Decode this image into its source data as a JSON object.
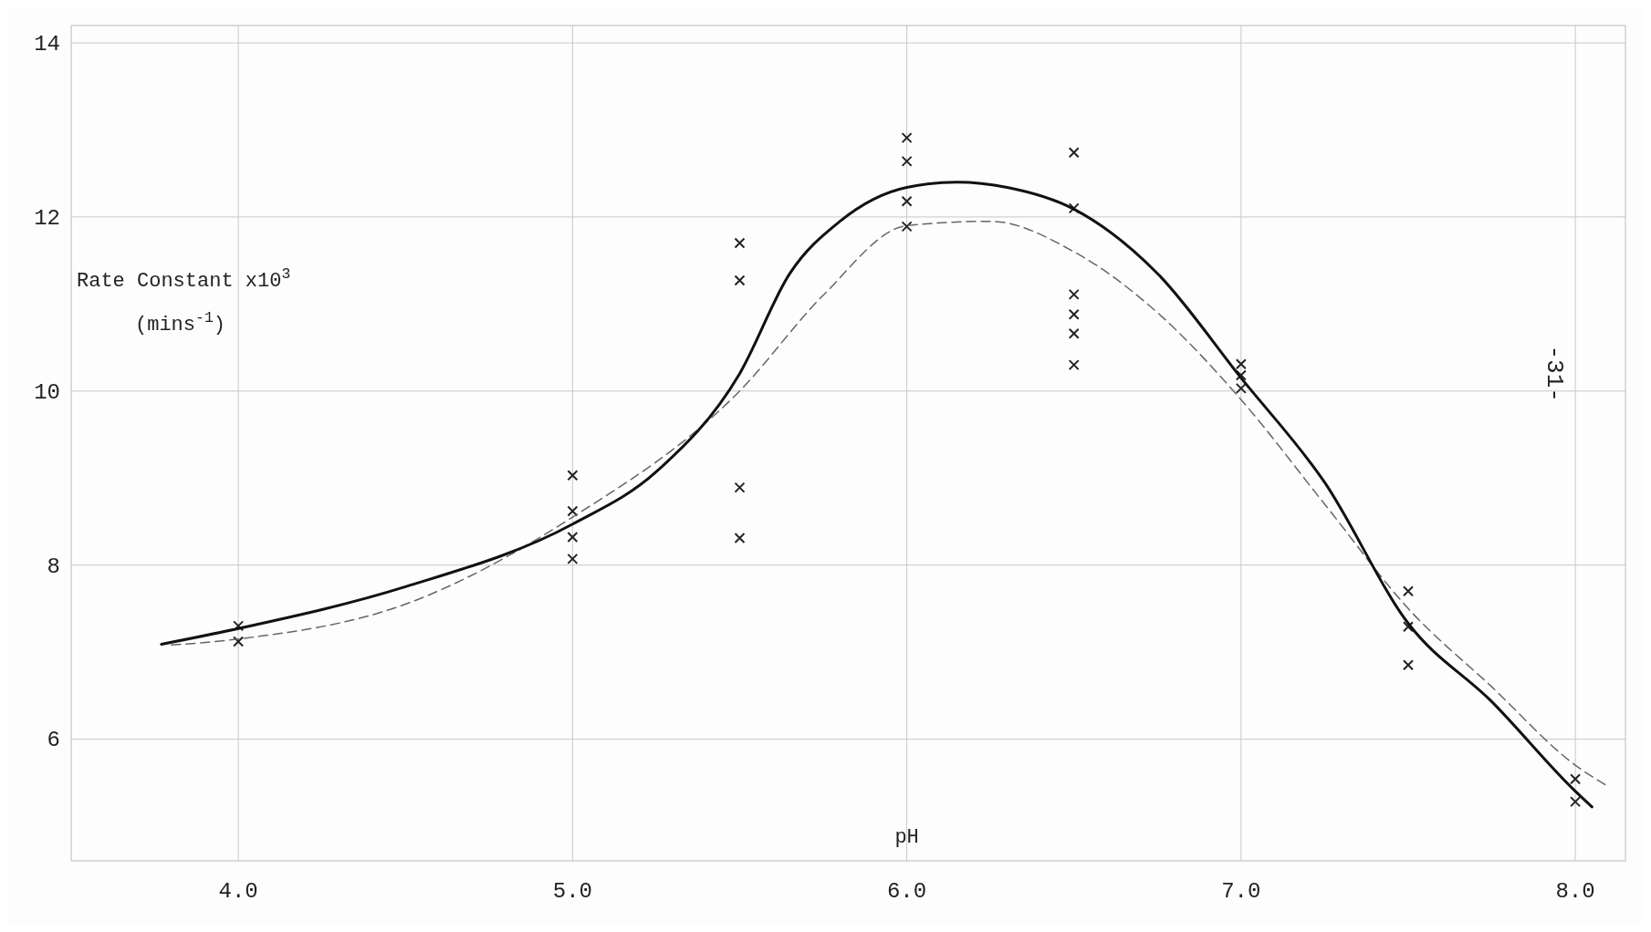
{
  "chart_data": {
    "type": "line",
    "xlabel": "pH",
    "ylabel": "Rate Constant x10$^{3}$ (mins$^{-1}$)",
    "annotations": [
      "-31-"
    ],
    "xlim": [
      3.5,
      8.15
    ],
    "ylim": [
      4.6,
      14.2
    ],
    "xticks": [
      {
        "value": 4,
        "label": "4.0"
      },
      {
        "value": 5,
        "label": "5.0"
      },
      {
        "value": 6,
        "label": "6.0"
      },
      {
        "value": 7,
        "label": "7.0"
      },
      {
        "value": 8,
        "label": "8.0"
      }
    ],
    "yticks": [
      6,
      8,
      10,
      12,
      14
    ],
    "grid": true,
    "series": [
      {
        "type": "scatter",
        "marker": "cross",
        "color": "#222222",
        "x": [
          4,
          4,
          5,
          5,
          5,
          5,
          5.5,
          5.5,
          5.5,
          5.5,
          6,
          6,
          6,
          6,
          6.5,
          6.5,
          6.5,
          6.5,
          6.5,
          6.5,
          7,
          7,
          7,
          7.5,
          7.5,
          7.5,
          8,
          8
        ],
        "values": [
          7.3,
          7.12,
          9.03,
          8.62,
          8.32,
          8.07,
          11.7,
          11.27,
          8.89,
          8.31,
          12.91,
          12.64,
          12.18,
          11.89,
          12.74,
          12.1,
          11.11,
          10.88,
          10.66,
          10.3,
          10.31,
          10.18,
          10.03,
          7.7,
          7.29,
          6.85,
          5.54,
          5.28
        ]
      },
      {
        "marker": "none",
        "line_style": "dashed",
        "color": "#666666",
        "x": [
          3.8,
          4,
          4.5,
          5,
          5.5,
          5.75,
          6,
          6.25,
          6.5,
          6.75,
          7,
          7.25,
          7.5,
          7.75,
          8,
          8.1
        ],
        "values": [
          7.08,
          7.15,
          7.55,
          8.55,
          10.0,
          11.1,
          11.9,
          11.95,
          11.6,
          10.9,
          9.9,
          8.7,
          7.5,
          6.6,
          5.7,
          5.45
        ]
      },
      {
        "marker": "none",
        "line_style": "solid",
        "color": "#111111",
        "x": [
          3.77,
          4,
          4.5,
          5,
          5.25,
          5.5,
          5.65,
          5.8,
          6,
          6.15,
          6.3,
          6.5,
          6.75,
          7,
          7.25,
          7.5,
          7.75,
          8,
          8.05
        ],
        "values": [
          7.09,
          7.27,
          7.75,
          8.47,
          9.07,
          10.2,
          11.35,
          11.95,
          12.34,
          12.4,
          12.34,
          12.09,
          11.35,
          10.15,
          8.95,
          7.33,
          6.43,
          5.4,
          5.22
        ]
      }
    ]
  }
}
